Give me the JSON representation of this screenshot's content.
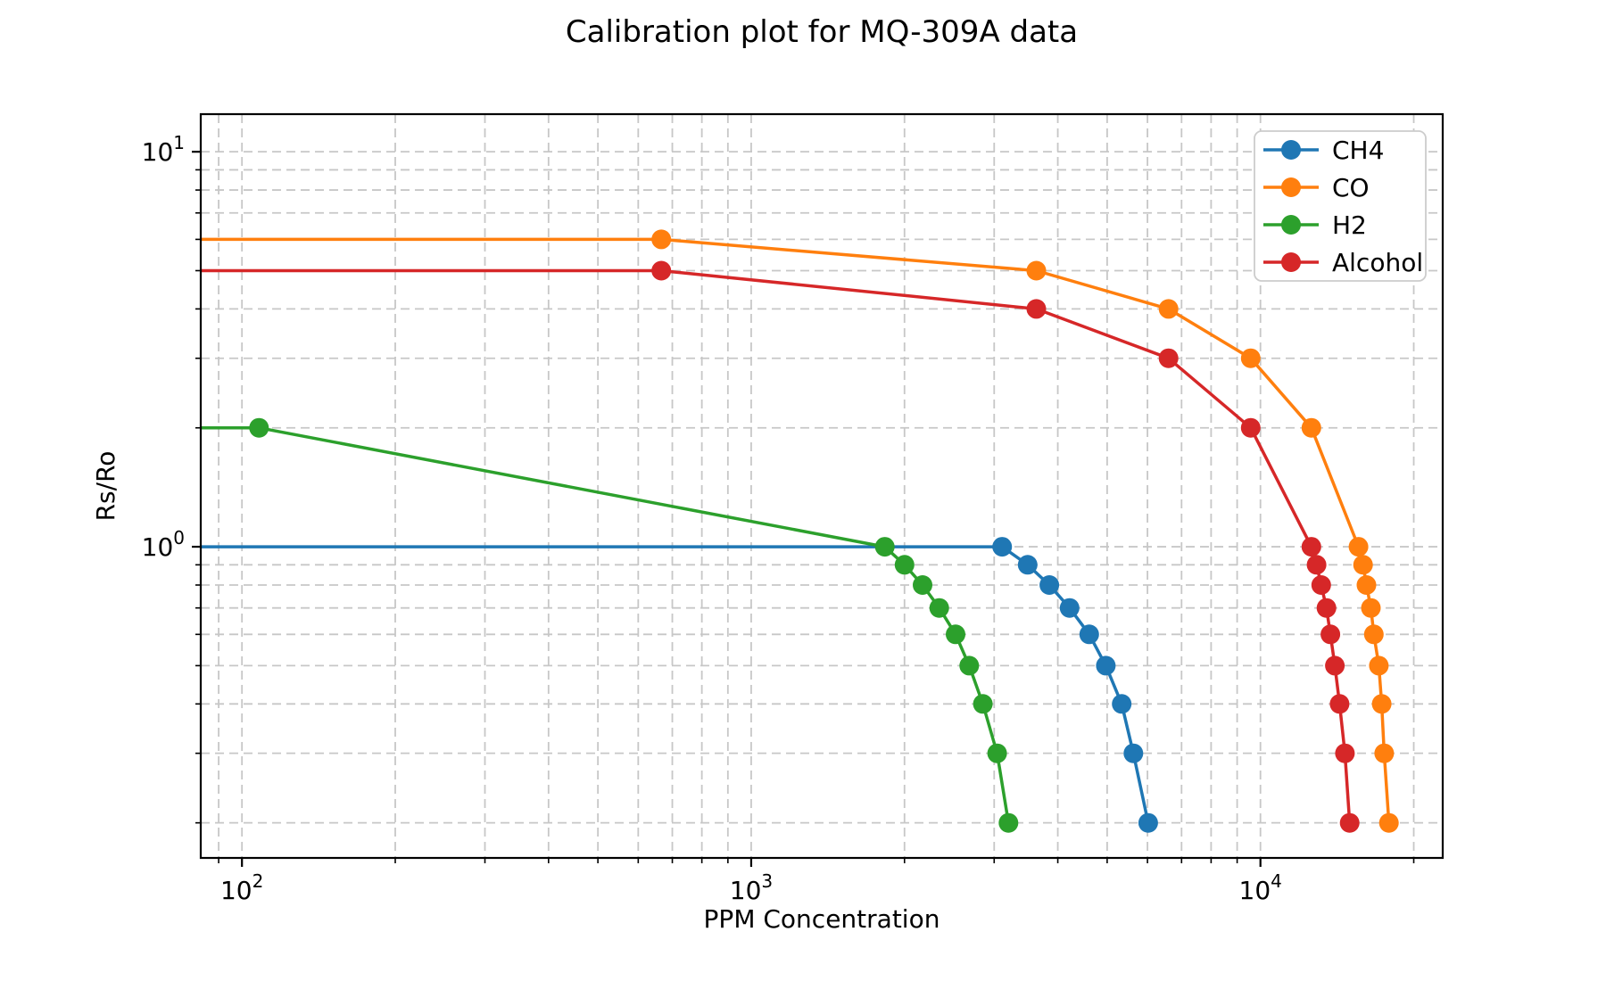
{
  "title": "Calibration plot for MQ-309A data",
  "chart_data": {
    "type": "line",
    "title": "Calibration plot for MQ-309A data",
    "xlabel": "PPM Concentration",
    "ylabel": "Rs/Ro",
    "x_scale": "log",
    "y_scale": "log",
    "xlim": [
      83,
      22800
    ],
    "ylim": [
      0.163,
      12.45
    ],
    "grid": {
      "visible": true,
      "which": "both",
      "style": "dashed",
      "color": "#c7c7c7"
    },
    "legend": {
      "position": "upper right",
      "entries": [
        "CH4",
        "CO",
        "H2",
        "Alcohol"
      ]
    },
    "x_major_ticks": [
      100,
      1000,
      10000
    ],
    "y_major_ticks": [
      1,
      10
    ],
    "series": [
      {
        "name": "CH4",
        "color": "#1f77b4",
        "points": [
          [
            78,
            1.0
          ],
          [
            3110,
            1.0
          ],
          [
            3490,
            0.9
          ],
          [
            3850,
            0.8
          ],
          [
            4220,
            0.7
          ],
          [
            4610,
            0.6
          ],
          [
            4970,
            0.5
          ],
          [
            5340,
            0.4
          ],
          [
            5630,
            0.3
          ],
          [
            6020,
            0.2
          ]
        ]
      },
      {
        "name": "CO",
        "color": "#ff7f0e",
        "points": [
          [
            78,
            6.0
          ],
          [
            666,
            6.0
          ],
          [
            3630,
            5.0
          ],
          [
            6600,
            4.0
          ],
          [
            9570,
            3.0
          ],
          [
            12590,
            2.0
          ],
          [
            15580,
            1.0
          ],
          [
            15900,
            0.9
          ],
          [
            16150,
            0.8
          ],
          [
            16480,
            0.7
          ],
          [
            16700,
            0.6
          ],
          [
            17080,
            0.5
          ],
          [
            17300,
            0.4
          ],
          [
            17500,
            0.3
          ],
          [
            17880,
            0.2
          ]
        ]
      },
      {
        "name": "H2",
        "color": "#2ca02c",
        "points": [
          [
            78,
            2.0
          ],
          [
            108,
            2.0
          ],
          [
            1830,
            1.0
          ],
          [
            2000,
            0.9
          ],
          [
            2170,
            0.8
          ],
          [
            2340,
            0.7
          ],
          [
            2520,
            0.6
          ],
          [
            2680,
            0.5
          ],
          [
            2850,
            0.4
          ],
          [
            3040,
            0.3
          ],
          [
            3200,
            0.2
          ]
        ]
      },
      {
        "name": "Alcohol",
        "color": "#d62728",
        "points": [
          [
            78,
            5.0
          ],
          [
            666,
            5.0
          ],
          [
            3630,
            4.0
          ],
          [
            6600,
            3.0
          ],
          [
            9570,
            2.0
          ],
          [
            12590,
            1.0
          ],
          [
            12890,
            0.9
          ],
          [
            13160,
            0.8
          ],
          [
            13480,
            0.7
          ],
          [
            13720,
            0.6
          ],
          [
            14000,
            0.5
          ],
          [
            14300,
            0.4
          ],
          [
            14650,
            0.3
          ],
          [
            14970,
            0.2
          ]
        ]
      }
    ]
  }
}
